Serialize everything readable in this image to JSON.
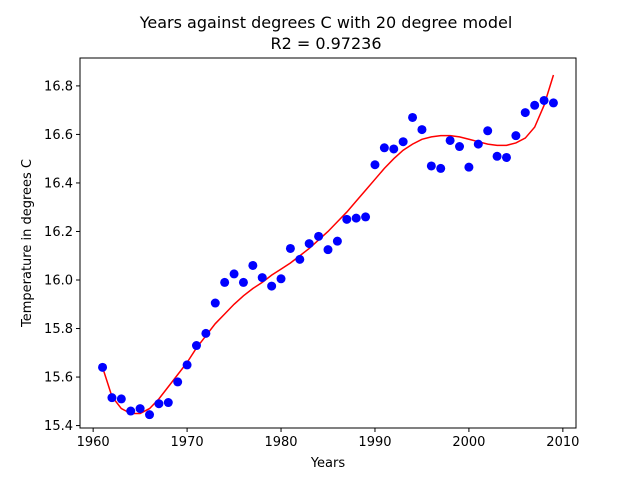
{
  "chart_data": {
    "type": "scatter",
    "title": "Years against degrees C with 20 degree model",
    "subtitle": "R2 = 0.97236",
    "xlabel": "Years",
    "ylabel": "Temperature in degrees C",
    "xlim": [
      1958.6,
      2011.4
    ],
    "ylim": [
      15.39,
      16.915
    ],
    "x_ticks": [
      1960,
      1970,
      1980,
      1990,
      2000,
      2010
    ],
    "y_ticks": [
      15.4,
      15.6,
      15.8,
      16.0,
      16.2,
      16.4,
      16.6,
      16.8
    ],
    "grid": false,
    "series": [
      {
        "kind": "scatter",
        "color": "#0000ff",
        "x": [
          1961,
          1962,
          1963,
          1964,
          1965,
          1966,
          1967,
          1968,
          1969,
          1970,
          1971,
          1972,
          1973,
          1974,
          1975,
          1976,
          1977,
          1978,
          1979,
          1980,
          1981,
          1982,
          1983,
          1984,
          1985,
          1986,
          1987,
          1988,
          1989,
          1990,
          1991,
          1992,
          1993,
          1994,
          1995,
          1996,
          1997,
          1998,
          1999,
          2000,
          2001,
          2002,
          2003,
          2004,
          2005,
          2006,
          2007,
          2008,
          2009
        ],
        "y": [
          15.64,
          15.515,
          15.51,
          15.46,
          15.47,
          15.445,
          15.49,
          15.495,
          15.58,
          15.65,
          15.73,
          15.78,
          15.905,
          15.99,
          16.025,
          15.99,
          16.06,
          16.01,
          15.975,
          16.005,
          16.13,
          16.085,
          16.15,
          16.18,
          16.125,
          16.16,
          16.25,
          16.255,
          16.26,
          16.475,
          16.545,
          16.54,
          16.57,
          16.67,
          16.62,
          16.47,
          16.46,
          16.575,
          16.55,
          16.465,
          16.56,
          16.615,
          16.51,
          16.505,
          16.595,
          16.69,
          16.72,
          16.74,
          16.73
        ]
      },
      {
        "kind": "line",
        "color": "#ff0000",
        "x": [
          1961,
          1962,
          1963,
          1964,
          1965,
          1966,
          1967,
          1968,
          1969,
          1970,
          1971,
          1972,
          1973,
          1974,
          1975,
          1976,
          1977,
          1978,
          1979,
          1980,
          1981,
          1982,
          1983,
          1984,
          1985,
          1986,
          1987,
          1988,
          1989,
          1990,
          1991,
          1992,
          1993,
          1994,
          1995,
          1996,
          1997,
          1998,
          1999,
          2000,
          2001,
          2002,
          2003,
          2004,
          2005,
          2006,
          2007,
          2008,
          2009
        ],
        "y": [
          15.64,
          15.52,
          15.47,
          15.45,
          15.45,
          15.47,
          15.51,
          15.56,
          15.61,
          15.66,
          15.72,
          15.77,
          15.82,
          15.86,
          15.9,
          15.935,
          15.965,
          15.99,
          16.02,
          16.045,
          16.07,
          16.1,
          16.13,
          16.165,
          16.2,
          16.24,
          16.28,
          16.325,
          16.37,
          16.415,
          16.46,
          16.5,
          16.535,
          16.56,
          16.58,
          16.59,
          16.595,
          16.595,
          16.59,
          16.58,
          16.57,
          16.56,
          16.555,
          16.555,
          16.565,
          16.585,
          16.63,
          16.72,
          16.845
        ]
      }
    ]
  }
}
